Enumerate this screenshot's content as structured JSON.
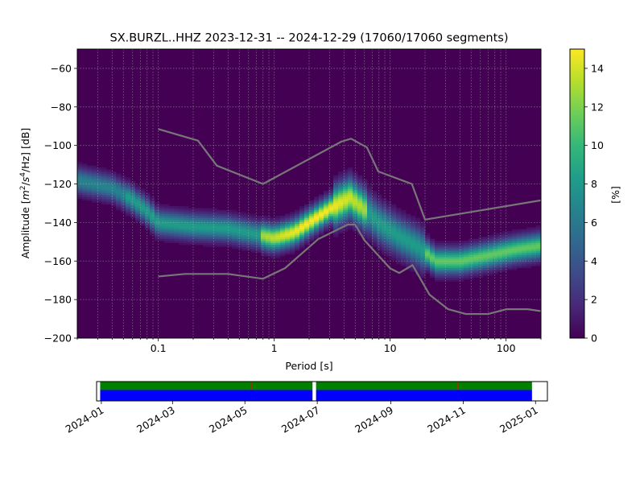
{
  "chart_data": {
    "type": "heatmap",
    "title": "SX.BURZL..HHZ   2023-12-31 -- 2024-12-29  (17060/17060 segments)",
    "xlabel": "Period [s]",
    "ylabel_parts": {
      "prefix": "Amplitude [",
      "m": "m",
      "m_exp": "2",
      "mid": "/",
      "s": "s",
      "s_exp": "4",
      "end": "/Hz] [dB]"
    },
    "x_scale": "log",
    "xlim": [
      0.02,
      200
    ],
    "ylim": [
      -200,
      -50
    ],
    "x_ticks": [
      {
        "value": 0.1,
        "label": "0.1"
      },
      {
        "value": 1,
        "label": "1"
      },
      {
        "value": 10,
        "label": "10"
      },
      {
        "value": 100,
        "label": "100"
      }
    ],
    "y_ticks": [
      {
        "value": -60,
        "label": "−60"
      },
      {
        "value": -80,
        "label": "−80"
      },
      {
        "value": -100,
        "label": "−100"
      },
      {
        "value": -120,
        "label": "−120"
      },
      {
        "value": -140,
        "label": "−140"
      },
      {
        "value": -160,
        "label": "−160"
      },
      {
        "value": -180,
        "label": "−180"
      },
      {
        "value": -200,
        "label": "−200"
      }
    ],
    "grid": true,
    "colorbar": {
      "label": "[%]",
      "range": [
        0,
        15
      ],
      "ticks": [
        {
          "value": 0,
          "label": "0"
        },
        {
          "value": 2,
          "label": "2"
        },
        {
          "value": 4,
          "label": "4"
        },
        {
          "value": 6,
          "label": "6"
        },
        {
          "value": 8,
          "label": "8"
        },
        {
          "value": 10,
          "label": "10"
        },
        {
          "value": 12,
          "label": "12"
        },
        {
          "value": 14,
          "label": "14"
        }
      ],
      "colormap": [
        "#440154",
        "#482878",
        "#3e4a89",
        "#31688e",
        "#26828e",
        "#1f9e89",
        "#35b779",
        "#6ece58",
        "#b5de2b",
        "#fde725"
      ]
    },
    "ridge": [
      {
        "period": 0.02,
        "db": -118
      },
      {
        "period": 0.04,
        "db": -122
      },
      {
        "period": 0.06,
        "db": -128
      },
      {
        "period": 0.08,
        "db": -134
      },
      {
        "period": 0.1,
        "db": -140
      },
      {
        "period": 0.2,
        "db": -142
      },
      {
        "period": 0.4,
        "db": -143
      },
      {
        "period": 0.7,
        "db": -146
      },
      {
        "period": 1.0,
        "db": -148
      },
      {
        "period": 1.5,
        "db": -145
      },
      {
        "period": 2.0,
        "db": -140
      },
      {
        "period": 3.0,
        "db": -133
      },
      {
        "period": 4.5,
        "db": -127
      },
      {
        "period": 6.0,
        "db": -133
      },
      {
        "period": 8.0,
        "db": -140
      },
      {
        "period": 12.0,
        "db": -147
      },
      {
        "period": 18.0,
        "db": -153
      },
      {
        "period": 25.0,
        "db": -160
      },
      {
        "period": 40.0,
        "db": -160
      },
      {
        "period": 70.0,
        "db": -157
      },
      {
        "period": 120.0,
        "db": -154
      },
      {
        "period": 200.0,
        "db": -152
      }
    ],
    "noise_models": [
      {
        "name": "upper",
        "color": "#777777",
        "points": [
          {
            "period": 0.1,
            "db": -91.5
          },
          {
            "period": 0.22,
            "db": -97.5
          },
          {
            "period": 0.32,
            "db": -110.5
          },
          {
            "period": 0.8,
            "db": -120
          },
          {
            "period": 3.8,
            "db": -98
          },
          {
            "period": 4.6,
            "db": -96.5
          },
          {
            "period": 6.3,
            "db": -101
          },
          {
            "period": 7.9,
            "db": -113.5
          },
          {
            "period": 15.4,
            "db": -120
          },
          {
            "period": 20,
            "db": -138.5
          },
          {
            "period": 200,
            "db": -128.5
          }
        ]
      },
      {
        "name": "lower",
        "color": "#777777",
        "points": [
          {
            "period": 0.1,
            "db": -168
          },
          {
            "period": 0.17,
            "db": -166.7
          },
          {
            "period": 0.4,
            "db": -166.7
          },
          {
            "period": 0.8,
            "db": -169.2
          },
          {
            "period": 1.24,
            "db": -163.7
          },
          {
            "period": 2.4,
            "db": -148.6
          },
          {
            "period": 4.3,
            "db": -141.1
          },
          {
            "period": 5.0,
            "db": -141.1
          },
          {
            "period": 6.0,
            "db": -149.2
          },
          {
            "period": 10.0,
            "db": -163.8
          },
          {
            "period": 12.0,
            "db": -166.2
          },
          {
            "period": 15.6,
            "db": -162.1
          },
          {
            "period": 21.9,
            "db": -177.5
          },
          {
            "period": 31.6,
            "db": -185
          },
          {
            "period": 45.0,
            "db": -187.5
          },
          {
            "period": 70.0,
            "db": -187.5
          },
          {
            "period": 101.0,
            "db": -185
          },
          {
            "period": 154.0,
            "db": -185
          },
          {
            "period": 200.0,
            "db": -186
          }
        ]
      }
    ],
    "timeline": {
      "range": [
        "2023-12-28",
        "2025-01-11"
      ],
      "ticks": [
        {
          "date": "2024-01-01",
          "label": "2024-01"
        },
        {
          "date": "2024-03-01",
          "label": "2024-03"
        },
        {
          "date": "2024-05-01",
          "label": "2024-05"
        },
        {
          "date": "2024-07-01",
          "label": "2024-07"
        },
        {
          "date": "2024-09-01",
          "label": "2024-09"
        },
        {
          "date": "2024-11-01",
          "label": "2024-11"
        },
        {
          "date": "2025-01-01",
          "label": "2025-01"
        }
      ],
      "coverage_colors": {
        "data": "#0000ff",
        "psd": "#008000",
        "gap": "#ff0000"
      },
      "segments": [
        {
          "start": "2023-12-31",
          "end": "2024-06-27"
        },
        {
          "start": "2024-06-30",
          "end": "2024-12-29"
        }
      ],
      "gap_marks": [
        "2024-05-07",
        "2024-10-27"
      ]
    }
  }
}
